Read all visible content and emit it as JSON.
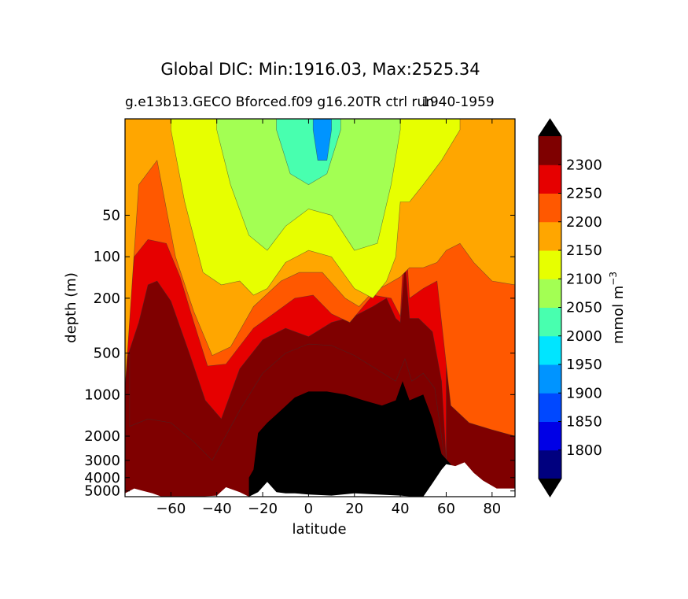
{
  "chart_data": {
    "type": "contour",
    "title": "Global DIC: Min:1916.03, Max:2525.34",
    "subtitle_left": "g.e13b13.GECO Bforced.f09 g16.20TR ctrl run",
    "subtitle_right": "1940-1959",
    "xlabel": "latitude",
    "ylabel": "depth (m)",
    "xlim": [
      -80,
      90
    ],
    "ylim": [
      5500,
      10
    ],
    "yscale": "log",
    "xticks": [
      -60,
      -40,
      -20,
      0,
      20,
      40,
      60,
      80
    ],
    "xtick_labels": [
      "−60",
      "−40",
      "−20",
      "0",
      "20",
      "40",
      "60",
      "80"
    ],
    "yticks": [
      50,
      100,
      200,
      500,
      1000,
      2000,
      3000,
      4000,
      5000
    ],
    "ytick_labels": [
      "50",
      "100",
      "200",
      "500",
      "1000",
      "2000",
      "3000",
      "4000",
      "5000"
    ],
    "colorbar": {
      "label": "mmol m",
      "label_exp": "−3",
      "levels": [
        1800,
        1850,
        1900,
        1950,
        2000,
        2050,
        2100,
        2150,
        2200,
        2250,
        2300
      ],
      "level_labels": [
        "1800",
        "1850",
        "1900",
        "1950",
        "2000",
        "2050",
        "2100",
        "2150",
        "2200",
        "2250",
        "2300"
      ],
      "colors": [
        "#00007f",
        "#0000e6",
        "#0048ff",
        "#0094ff",
        "#00e5ff",
        "#48ffaf",
        "#a3ff53",
        "#e7ff00",
        "#ffa600",
        "#ff5800",
        "#e60000",
        "#7f0000"
      ],
      "under_color": "#000000",
      "over_color": "#000000",
      "extend": "both"
    },
    "fields": {
      "max_band_color": "#000000",
      "land_color": "#ffffff"
    },
    "contours": [
      {
        "level": 2250,
        "color": "#7f0000",
        "boundary_depth": [
          [
            -78,
            1700
          ],
          [
            -70,
            1500
          ],
          [
            -60,
            1600
          ],
          [
            -50,
            2200
          ],
          [
            -42,
            3000
          ],
          [
            -30,
            1300
          ],
          [
            -20,
            700
          ],
          [
            -10,
            500
          ],
          [
            0,
            430
          ],
          [
            10,
            440
          ],
          [
            20,
            520
          ],
          [
            30,
            660
          ],
          [
            38,
            800
          ],
          [
            42,
            550
          ],
          [
            45,
            800
          ],
          [
            50,
            700
          ],
          [
            55,
            900
          ],
          [
            60,
            3500
          ]
        ]
      },
      {
        "level": 2200,
        "color": "#e60000",
        "boundary_depth": [
          [
            -80,
            600
          ],
          [
            -74,
            300
          ],
          [
            -70,
            160
          ],
          [
            -66,
            150
          ],
          [
            -60,
            210
          ],
          [
            -52,
            500
          ],
          [
            -45,
            1100
          ],
          [
            -38,
            1500
          ],
          [
            -30,
            650
          ],
          [
            -20,
            400
          ],
          [
            -10,
            330
          ],
          [
            0,
            380
          ],
          [
            10,
            300
          ],
          [
            20,
            270
          ],
          [
            28,
            230
          ],
          [
            34,
            200
          ],
          [
            38,
            280
          ],
          [
            40,
            300
          ],
          [
            42,
            110
          ],
          [
            44,
            280
          ],
          [
            48,
            280
          ],
          [
            54,
            350
          ],
          [
            58,
            800
          ],
          [
            60,
            3000
          ]
        ]
      },
      {
        "level": 2150,
        "color": "#ff5800",
        "boundary_depth": [
          [
            -80,
            520
          ],
          [
            -76,
            100
          ],
          [
            -70,
            75
          ],
          [
            -62,
            80
          ],
          [
            -56,
            140
          ],
          [
            -50,
            300
          ],
          [
            -44,
            620
          ],
          [
            -36,
            600
          ],
          [
            -24,
            330
          ],
          [
            -14,
            250
          ],
          [
            -6,
            200
          ],
          [
            2,
            190
          ],
          [
            10,
            260
          ],
          [
            18,
            300
          ],
          [
            28,
            190
          ],
          [
            36,
            200
          ],
          [
            40,
            270
          ],
          [
            42,
            60
          ],
          [
            44,
            200
          ],
          [
            50,
            170
          ],
          [
            56,
            150
          ],
          [
            62,
            1200
          ],
          [
            70,
            1600
          ],
          [
            80,
            1800
          ],
          [
            90,
            2000
          ]
        ]
      },
      {
        "level": 2100,
        "color": "#ffa600",
        "boundary_depth": [
          [
            -80,
            900
          ],
          [
            -74,
            30
          ],
          [
            -66,
            20
          ],
          [
            -58,
            100
          ],
          [
            -50,
            250
          ],
          [
            -42,
            520
          ],
          [
            -34,
            450
          ],
          [
            -24,
            230
          ],
          [
            -12,
            150
          ],
          [
            -4,
            130
          ],
          [
            6,
            130
          ],
          [
            16,
            200
          ],
          [
            22,
            230
          ],
          [
            28,
            180
          ],
          [
            34,
            160
          ],
          [
            40,
            140
          ],
          [
            44,
            120
          ],
          [
            50,
            120
          ],
          [
            56,
            110
          ],
          [
            60,
            90
          ],
          [
            66,
            80
          ],
          [
            72,
            110
          ],
          [
            80,
            150
          ],
          [
            90,
            160
          ]
        ]
      },
      {
        "level": 2050,
        "color": "#e7ff00",
        "boundary_depth": [
          [
            -60,
            12
          ],
          [
            -54,
            40
          ],
          [
            -46,
            130
          ],
          [
            -38,
            160
          ],
          [
            -30,
            150
          ],
          [
            -24,
            190
          ],
          [
            -18,
            170
          ],
          [
            -10,
            110
          ],
          [
            0,
            90
          ],
          [
            10,
            100
          ],
          [
            20,
            170
          ],
          [
            28,
            200
          ],
          [
            34,
            150
          ],
          [
            38,
            100
          ],
          [
            40,
            40
          ],
          [
            44,
            40
          ],
          [
            50,
            30
          ],
          [
            58,
            20
          ],
          [
            66,
            12
          ]
        ]
      },
      {
        "level": 2000,
        "color": "#a3ff53",
        "boundary_depth": [
          [
            -40,
            12
          ],
          [
            -34,
            30
          ],
          [
            -26,
            70
          ],
          [
            -18,
            90
          ],
          [
            -10,
            60
          ],
          [
            0,
            45
          ],
          [
            10,
            50
          ],
          [
            20,
            90
          ],
          [
            30,
            80
          ],
          [
            36,
            30
          ],
          [
            40,
            12
          ]
        ]
      },
      {
        "level": 1950,
        "color": "#48ffaf",
        "boundary_depth": [
          [
            -14,
            12
          ],
          [
            -8,
            25
          ],
          [
            0,
            30
          ],
          [
            8,
            25
          ],
          [
            14,
            12
          ]
        ]
      },
      {
        "level": 1900,
        "color": "#0094ff",
        "boundary_depth": [
          [
            2,
            12
          ],
          [
            4,
            20
          ],
          [
            8,
            20
          ],
          [
            10,
            12
          ]
        ]
      }
    ],
    "max_band_boundary_depth": [
      [
        -26,
        4000
      ],
      [
        -24,
        3500
      ],
      [
        -22,
        1900
      ],
      [
        -18,
        1600
      ],
      [
        -12,
        1300
      ],
      [
        -6,
        1050
      ],
      [
        0,
        950
      ],
      [
        8,
        950
      ],
      [
        16,
        1000
      ],
      [
        24,
        1100
      ],
      [
        32,
        1200
      ],
      [
        38,
        1100
      ],
      [
        41,
        800
      ],
      [
        44,
        1100
      ],
      [
        50,
        1000
      ],
      [
        54,
        1500
      ],
      [
        58,
        2700
      ],
      [
        62,
        3200
      ]
    ],
    "bottom_topography_depth": [
      [
        -80,
        5200
      ],
      [
        -76,
        4800
      ],
      [
        -72,
        5000
      ],
      [
        -68,
        5200
      ],
      [
        -64,
        5500
      ],
      [
        -56,
        5500
      ],
      [
        -48,
        5500
      ],
      [
        -40,
        5400
      ],
      [
        -36,
        4700
      ],
      [
        -30,
        5100
      ],
      [
        -26,
        5500
      ],
      [
        -22,
        5100
      ],
      [
        -18,
        4300
      ],
      [
        -14,
        5100
      ],
      [
        -10,
        5200
      ],
      [
        -6,
        5200
      ],
      [
        0,
        5300
      ],
      [
        10,
        5400
      ],
      [
        20,
        5200
      ],
      [
        30,
        5300
      ],
      [
        40,
        5400
      ],
      [
        46,
        5500
      ],
      [
        50,
        5500
      ],
      [
        54,
        4400
      ],
      [
        58,
        3500
      ],
      [
        60,
        3200
      ],
      [
        64,
        3300
      ],
      [
        68,
        3100
      ],
      [
        72,
        3700
      ],
      [
        76,
        4200
      ],
      [
        82,
        4800
      ],
      [
        90,
        4800
      ]
    ]
  }
}
